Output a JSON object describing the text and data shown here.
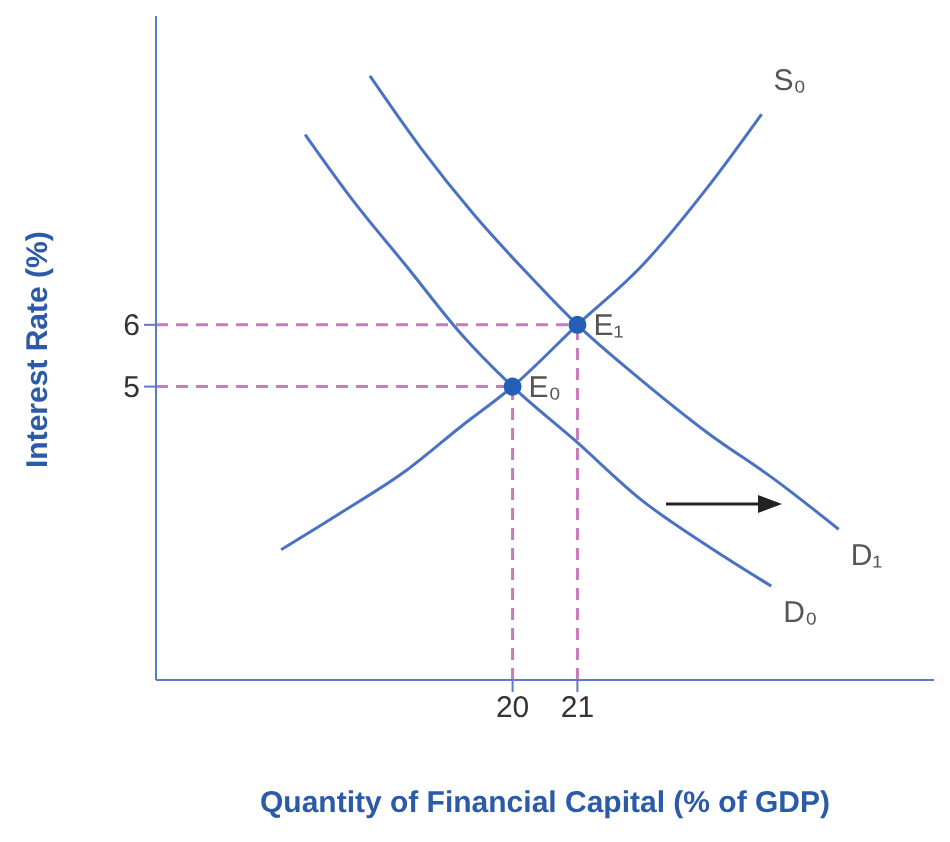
{
  "chart_data": {
    "type": "line",
    "xlabel": "Quantity of Financial Capital (% of GDP)",
    "ylabel": "Interest Rate (%)",
    "xlim": [
      14.5,
      26.5
    ],
    "xticks": [
      20,
      21
    ],
    "ylim": [
      0.25,
      11
    ],
    "yticks": [
      5,
      6
    ],
    "marker": "none",
    "line_style": "solid",
    "series": [
      {
        "name": "S₀",
        "color": "#4a72c4",
        "x": [
          16.43,
          17.34,
          18.37,
          19.2,
          20,
          21,
          21.98,
          23.01,
          23.84
        ],
        "values": [
          2.36,
          2.95,
          3.65,
          4.35,
          5,
          6,
          6.94,
          8.23,
          9.41
        ]
      },
      {
        "name": "D₀",
        "color": "#4a72c4",
        "x": [
          16.8,
          17.54,
          18.37,
          19.2,
          20,
          20.95,
          21.98,
          23.01,
          23.99
        ],
        "values": [
          9.08,
          8.01,
          6.94,
          5.86,
          5,
          4.14,
          3.17,
          2.42,
          1.77
        ]
      },
      {
        "name": "D₁",
        "color": "#4a72c4",
        "x": [
          17.8,
          18.58,
          19.4,
          20.23,
          21,
          21.98,
          23.01,
          24.05,
          25.03
        ],
        "values": [
          10.03,
          8.87,
          7.79,
          6.83,
          6,
          5.11,
          4.25,
          3.49,
          2.69
        ]
      },
      {
        "color": "#c77bb8",
        "line_style": "dashed",
        "x": [
          14.5,
          20
        ],
        "values": [
          5,
          5
        ]
      },
      {
        "color": "#c77bb8",
        "line_style": "dashed",
        "x": [
          14.5,
          21
        ],
        "values": [
          6,
          6
        ]
      },
      {
        "color": "#c77bb8",
        "line_style": "dashed",
        "x": [
          20,
          20
        ],
        "values": [
          0.25,
          5
        ]
      },
      {
        "color": "#c77bb8",
        "line_style": "dashed",
        "x": [
          21,
          21
        ],
        "values": [
          0.25,
          6
        ]
      },
      {
        "type": "scatter",
        "marker": "circle",
        "color": "#2360b5",
        "x": [
          20,
          21
        ],
        "values": [
          5,
          6
        ]
      }
    ],
    "annotations": [
      {
        "text": "E₀",
        "x": 20,
        "y": 5
      },
      {
        "text": "E₁",
        "x": 21,
        "y": 6
      }
    ]
  }
}
